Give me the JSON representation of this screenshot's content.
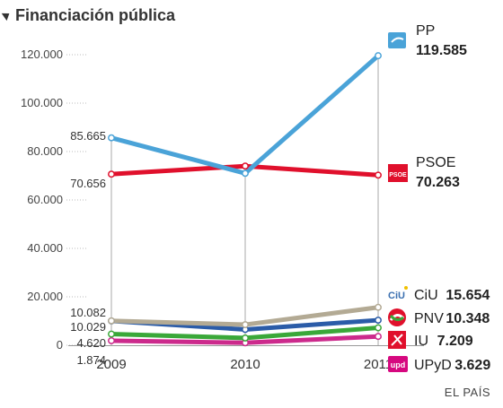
{
  "header": {
    "title": "Financiación pública",
    "source": "EL PAÍS"
  },
  "colors": {
    "PP": "#4aa3d8",
    "PSOE": "#e0102c",
    "CiU": "#b3aa94",
    "PNV": "#2b5ca8",
    "IU": "#3aa839",
    "UPyD": "#cc2a8c"
  },
  "chart_data": {
    "type": "line",
    "title": "Financiación pública",
    "x": [
      "2009",
      "2010",
      "2011"
    ],
    "ylim": [
      0,
      120000
    ],
    "yticks": [
      0,
      20000,
      40000,
      60000,
      80000,
      100000,
      120000
    ],
    "ytick_labels": [
      "0",
      "20.000",
      "40.000",
      "60.000",
      "80.000",
      "100.000",
      "120.000"
    ],
    "grid": false,
    "legend": "right",
    "series": [
      {
        "name": "PP",
        "values": [
          85665,
          71000,
          119585
        ],
        "label_2009": "85.665",
        "label_2011": "119.585",
        "icon": "pp-logo-icon"
      },
      {
        "name": "PSOE",
        "values": [
          70656,
          74000,
          70263
        ],
        "label_2009": "70.656",
        "label_2011": "70.263",
        "icon": "psoe-logo-icon"
      },
      {
        "name": "CiU",
        "values": [
          10082,
          8500,
          15654
        ],
        "label_2009": "10.082",
        "label_2011": "15.654",
        "icon": "ciu-logo-icon"
      },
      {
        "name": "PNV",
        "values": [
          10029,
          6500,
          10348
        ],
        "label_2009": "10.029",
        "label_2011": "10.348",
        "icon": "pnv-logo-icon"
      },
      {
        "name": "IU",
        "values": [
          4620,
          3000,
          7209
        ],
        "label_2009": "4.620",
        "label_2011": "7.209",
        "icon": "iu-logo-icon"
      },
      {
        "name": "UPyD",
        "values": [
          1874,
          1000,
          3629
        ],
        "label_2009": "1.874",
        "label_2011": "3.629",
        "icon": "upyd-logo-icon"
      }
    ]
  }
}
